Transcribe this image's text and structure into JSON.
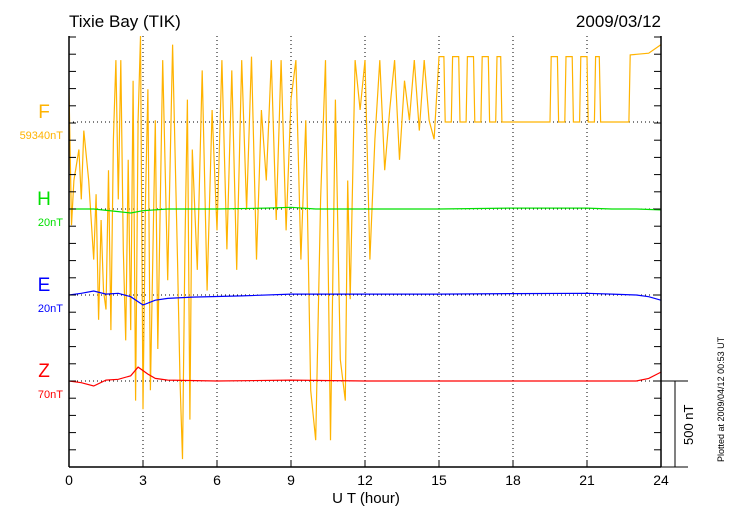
{
  "chart_data": {
    "type": "line",
    "title": "Tixie Bay (TIK)",
    "date": "2009/03/12",
    "xlabel": "U T (hour)",
    "xlim": [
      0,
      24
    ],
    "xticks": [
      "0",
      "3",
      "6",
      "9",
      "12",
      "15",
      "18",
      "21",
      "24"
    ],
    "scale_bar_label": "500 nT",
    "scale_nT_per_bar": 500,
    "plotted_note": "Plotted at 2009/04/12 00:53 UT",
    "grid": "dotted, every 3 hours and at trace baselines",
    "series": [
      {
        "name": "F",
        "baseline_label": "59340nT",
        "color": "#ffb300",
        "points": [
          [
            0,
            190
          ],
          [
            0.1,
            -600
          ],
          [
            0.2,
            -340
          ],
          [
            0.4,
            -160
          ],
          [
            0.5,
            -450
          ],
          [
            0.6,
            -50
          ],
          [
            0.8,
            -340
          ],
          [
            1.0,
            -800
          ],
          [
            1.1,
            -420
          ],
          [
            1.2,
            -1150
          ],
          [
            1.3,
            -570
          ],
          [
            1.4,
            -980
          ],
          [
            1.5,
            -1090
          ],
          [
            1.6,
            -280
          ],
          [
            1.7,
            -1210
          ],
          [
            1.8,
            -100
          ],
          [
            1.9,
            360
          ],
          [
            2.0,
            -450
          ],
          [
            2.1,
            360
          ],
          [
            2.2,
            -740
          ],
          [
            2.3,
            -1270
          ],
          [
            2.4,
            -220
          ],
          [
            2.5,
            -1210
          ],
          [
            2.6,
            240
          ],
          [
            2.7,
            -1620
          ],
          [
            2.8,
            10
          ],
          [
            2.9,
            500
          ],
          [
            3.0,
            -1670
          ],
          [
            3.1,
            -450
          ],
          [
            3.2,
            190
          ],
          [
            3.3,
            -1560
          ],
          [
            3.5,
            10
          ],
          [
            3.6,
            -1320
          ],
          [
            3.8,
            360
          ],
          [
            4.0,
            -920
          ],
          [
            4.2,
            450
          ],
          [
            4.4,
            -800
          ],
          [
            4.5,
            -1500
          ],
          [
            4.6,
            -1960
          ],
          [
            4.7,
            -740
          ],
          [
            4.8,
            130
          ],
          [
            4.9,
            -1730
          ],
          [
            5.0,
            -160
          ],
          [
            5.2,
            -860
          ],
          [
            5.4,
            300
          ],
          [
            5.6,
            -980
          ],
          [
            5.8,
            70
          ],
          [
            6.0,
            -630
          ],
          [
            6.2,
            360
          ],
          [
            6.4,
            -740
          ],
          [
            6.6,
            300
          ],
          [
            6.8,
            -860
          ],
          [
            7.0,
            360
          ],
          [
            7.2,
            -510
          ],
          [
            7.4,
            380
          ],
          [
            7.6,
            -800
          ],
          [
            7.8,
            70
          ],
          [
            8.0,
            -340
          ],
          [
            8.2,
            360
          ],
          [
            8.4,
            -570
          ],
          [
            8.6,
            360
          ],
          [
            8.8,
            -630
          ],
          [
            9.0,
            130
          ],
          [
            9.2,
            360
          ],
          [
            9.4,
            -800
          ],
          [
            9.6,
            10
          ],
          [
            9.8,
            -1560
          ],
          [
            10.0,
            -1850
          ],
          [
            10.2,
            -450
          ],
          [
            10.4,
            360
          ],
          [
            10.6,
            -1850
          ],
          [
            10.8,
            130
          ],
          [
            11.0,
            -1380
          ],
          [
            11.2,
            -1620
          ],
          [
            11.3,
            -340
          ],
          [
            11.4,
            -1030
          ],
          [
            11.6,
            360
          ],
          [
            11.8,
            70
          ],
          [
            12.0,
            360
          ],
          [
            12.2,
            -800
          ],
          [
            12.4,
            -100
          ],
          [
            12.6,
            360
          ],
          [
            12.8,
            -280
          ],
          [
            13.0,
            70
          ],
          [
            13.2,
            360
          ],
          [
            13.4,
            -220
          ],
          [
            13.6,
            240
          ],
          [
            13.8,
            10
          ],
          [
            14.0,
            360
          ],
          [
            14.2,
            -50
          ],
          [
            14.4,
            360
          ],
          [
            14.6,
            10
          ],
          [
            14.8,
            -100
          ],
          [
            15.0,
            380
          ],
          [
            15.2,
            380
          ],
          [
            15.25,
            0
          ],
          [
            15.5,
            0
          ],
          [
            15.55,
            380
          ],
          [
            15.8,
            380
          ],
          [
            15.85,
            0
          ],
          [
            16.1,
            0
          ],
          [
            16.15,
            380
          ],
          [
            16.4,
            380
          ],
          [
            16.45,
            0
          ],
          [
            16.7,
            0
          ],
          [
            16.75,
            380
          ],
          [
            17.0,
            380
          ],
          [
            17.05,
            0
          ],
          [
            17.3,
            0
          ],
          [
            17.35,
            380
          ],
          [
            17.5,
            380
          ],
          [
            17.55,
            0
          ],
          [
            19.5,
            0
          ],
          [
            19.55,
            380
          ],
          [
            19.8,
            380
          ],
          [
            19.85,
            0
          ],
          [
            20.1,
            0
          ],
          [
            20.15,
            380
          ],
          [
            20.4,
            380
          ],
          [
            20.45,
            0
          ],
          [
            20.7,
            0
          ],
          [
            20.75,
            380
          ],
          [
            21.0,
            380
          ],
          [
            21.05,
            0
          ],
          [
            21.3,
            0
          ],
          [
            21.35,
            380
          ],
          [
            21.5,
            380
          ],
          [
            21.55,
            0
          ],
          [
            22.7,
            0
          ],
          [
            22.75,
            390
          ],
          [
            23.5,
            400
          ],
          [
            24,
            450
          ]
        ]
      },
      {
        "name": "H",
        "baseline_label": "20nT",
        "color": "#00e000",
        "points": [
          [
            0,
            0
          ],
          [
            1,
            0
          ],
          [
            2,
            -15
          ],
          [
            2.5,
            -23
          ],
          [
            3,
            -10
          ],
          [
            4,
            0
          ],
          [
            6,
            0
          ],
          [
            8,
            5
          ],
          [
            9,
            10
          ],
          [
            10,
            0
          ],
          [
            12,
            0
          ],
          [
            15,
            0
          ],
          [
            18,
            5
          ],
          [
            21,
            5
          ],
          [
            22,
            0
          ],
          [
            23,
            0
          ],
          [
            24,
            -5
          ]
        ]
      },
      {
        "name": "E",
        "baseline_label": "20nT",
        "color": "#0000ff",
        "points": [
          [
            0,
            0
          ],
          [
            0.5,
            10
          ],
          [
            1,
            23
          ],
          [
            1.5,
            5
          ],
          [
            2,
            10
          ],
          [
            2.5,
            -10
          ],
          [
            3,
            -58
          ],
          [
            3.5,
            -30
          ],
          [
            4,
            -20
          ],
          [
            5,
            -12
          ],
          [
            7,
            -5
          ],
          [
            9,
            5
          ],
          [
            12,
            5
          ],
          [
            15,
            5
          ],
          [
            18,
            8
          ],
          [
            21,
            10
          ],
          [
            22,
            5
          ],
          [
            23,
            0
          ],
          [
            23.5,
            -10
          ],
          [
            24,
            -30
          ]
        ]
      },
      {
        "name": "Z",
        "baseline_label": "70nT",
        "color": "#ff0000",
        "points": [
          [
            0,
            0
          ],
          [
            0.5,
            -10
          ],
          [
            1,
            -29
          ],
          [
            1.5,
            5
          ],
          [
            2,
            10
          ],
          [
            2.5,
            30
          ],
          [
            2.8,
            81
          ],
          [
            3.2,
            40
          ],
          [
            3.5,
            15
          ],
          [
            4,
            5
          ],
          [
            6,
            0
          ],
          [
            9,
            5
          ],
          [
            12,
            0
          ],
          [
            15,
            0
          ],
          [
            18,
            0
          ],
          [
            21,
            0
          ],
          [
            22,
            0
          ],
          [
            23,
            0
          ],
          [
            23.5,
            15
          ],
          [
            24,
            52
          ]
        ]
      }
    ]
  }
}
